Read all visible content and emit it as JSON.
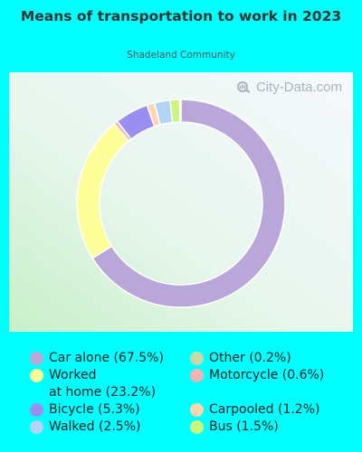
{
  "header": {
    "title": "Means of transportation to work in 2023",
    "subtitle": "Shadeland Community",
    "watermark": "City-Data.com"
  },
  "chart_data": {
    "type": "pie",
    "donut": true,
    "categories": [
      "Car alone",
      "Worked at home",
      "Bicycle",
      "Walked",
      "Other",
      "Motorcycle",
      "Carpooled",
      "Bus"
    ],
    "values": [
      67.5,
      23.2,
      5.3,
      2.5,
      0.2,
      0.6,
      1.2,
      1.5
    ],
    "colors": [
      "#b8a7d8",
      "#ffff99",
      "#9a8ef0",
      "#b3d4f5",
      "#c8d8a8",
      "#f4b4b4",
      "#fdd5b0",
      "#ccf57f"
    ],
    "ring_order": [
      "Car alone",
      "Worked at home",
      "Motorcycle",
      "Bicycle",
      "Carpooled",
      "Walked",
      "Bus",
      "Other"
    ],
    "legend": [
      {
        "label": "Car alone (67.5%)",
        "color": "#b8a7d8"
      },
      {
        "label": "Worked\nat home (23.2%)",
        "color": "#ffff99"
      },
      {
        "label": "Bicycle (5.3%)",
        "color": "#9a8ef0"
      },
      {
        "label": "Walked (2.5%)",
        "color": "#b3d4f5"
      },
      {
        "label": "Other (0.2%)",
        "color": "#c8d8a8"
      },
      {
        "label": "Motorcycle (0.6%)",
        "color": "#f4b4b4"
      },
      {
        "label": "Carpooled (1.2%)",
        "color": "#fdd5b0"
      },
      {
        "label": "Bus (1.5%)",
        "color": "#ccf57f"
      }
    ]
  }
}
